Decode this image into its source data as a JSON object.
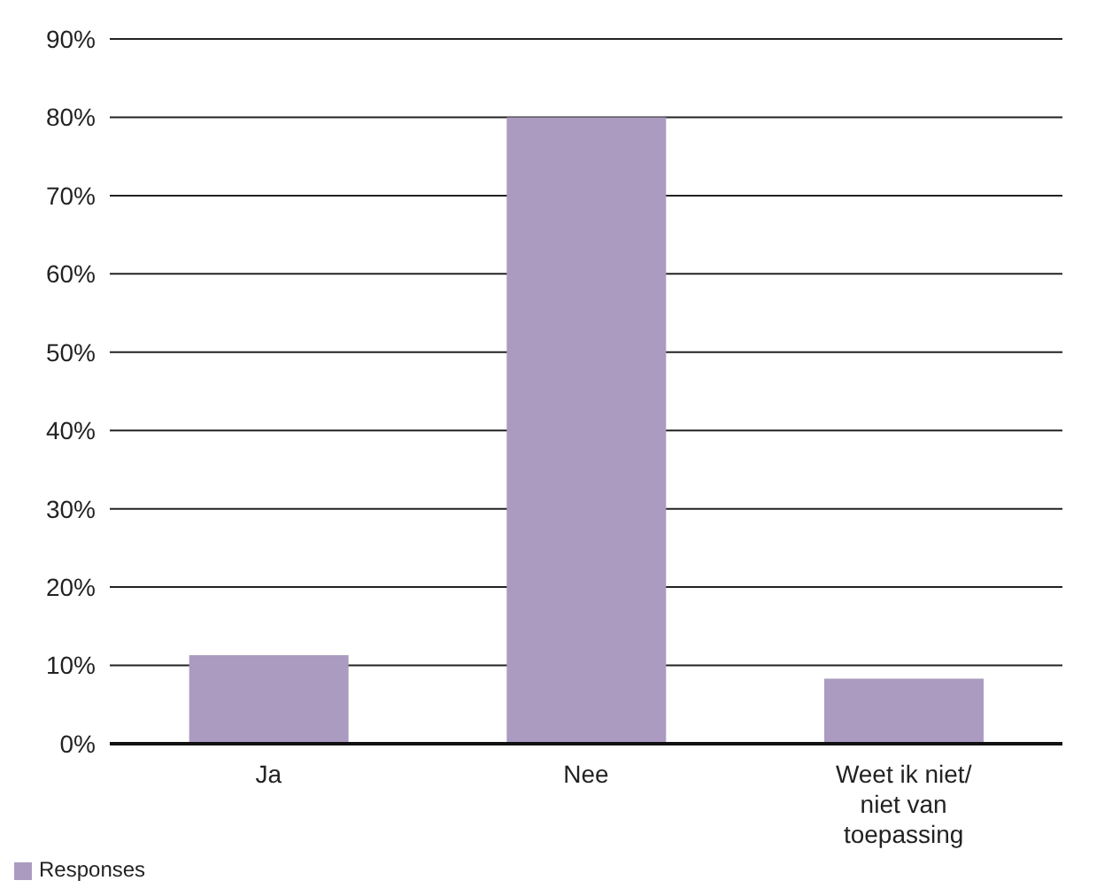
{
  "chart_data": {
    "type": "bar",
    "categories": [
      "Ja",
      "Nee",
      "Weet ik niet/ niet van toepassing"
    ],
    "series": [
      {
        "name": "Responses",
        "color": "#ab9bc0",
        "values": [
          11.3,
          80,
          8.3
        ]
      }
    ],
    "ylim": [
      0,
      90
    ],
    "yticks": [
      {
        "value": 0,
        "label": "0%"
      },
      {
        "value": 10,
        "label": "10%"
      },
      {
        "value": 20,
        "label": "20%"
      },
      {
        "value": 30,
        "label": "30%"
      },
      {
        "value": 40,
        "label": "40%"
      },
      {
        "value": 50,
        "label": "50%"
      },
      {
        "value": 60,
        "label": "60%"
      },
      {
        "value": 70,
        "label": "70%"
      },
      {
        "value": 80,
        "label": "80%"
      },
      {
        "value": 90,
        "label": "90%"
      }
    ],
    "grid": "y",
    "legend": "bottom left"
  }
}
